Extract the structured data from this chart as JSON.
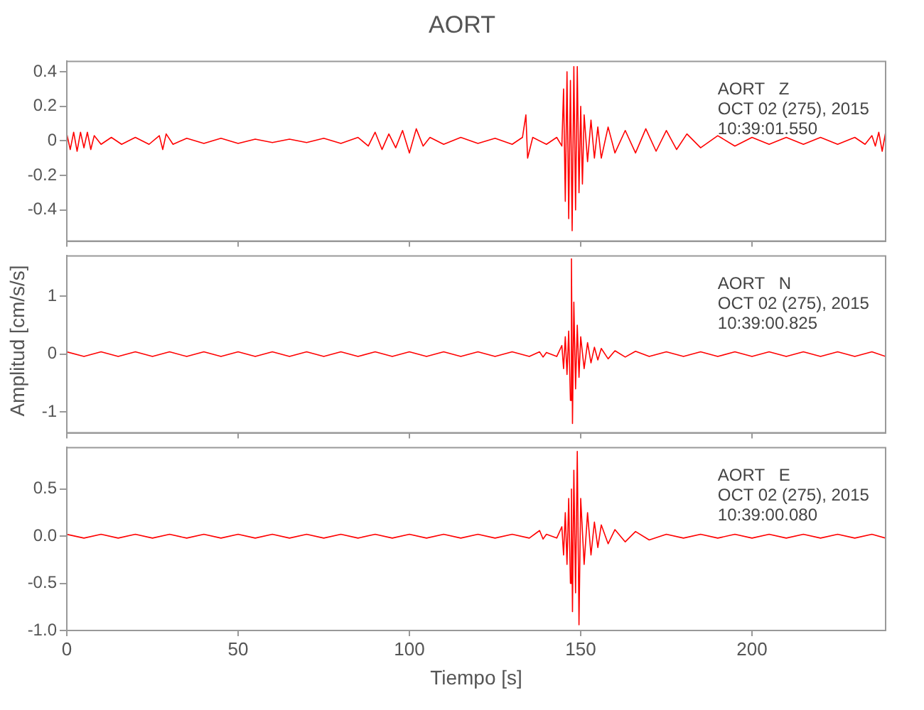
{
  "chart_data": [
    {
      "type": "line",
      "title": "AORT",
      "annotations": [
        "AORT   Z",
        "OCT 02 (275), 2015",
        "10:39:01.550"
      ],
      "tick_labels": "y",
      "grid": false,
      "xlim": [
        0,
        239
      ],
      "xticks": [
        0,
        50,
        100,
        150,
        200
      ],
      "ylim": [
        -0.58,
        0.46
      ],
      "yticks": [
        -0.4,
        -0.2,
        0.0,
        0.2,
        0.4
      ],
      "series": [
        {
          "color": "#ff0000",
          "x": [
            0,
            1,
            2,
            3,
            4,
            5,
            6,
            7,
            8,
            10,
            13,
            16,
            20,
            24,
            27,
            28,
            29,
            31,
            35,
            40,
            45,
            50,
            55,
            60,
            65,
            70,
            75,
            80,
            85,
            88,
            90,
            92,
            94,
            96,
            98,
            100,
            102,
            104,
            106,
            110,
            115,
            120,
            125,
            130,
            133,
            134,
            134.5,
            136,
            140,
            143,
            144.5,
            145,
            145.5,
            146,
            146.5,
            147,
            147.5,
            148,
            148.5,
            149,
            149.5,
            150,
            150.5,
            151,
            152,
            153,
            154,
            155,
            156,
            158,
            160,
            163,
            166,
            169,
            172,
            175,
            178,
            181,
            185,
            190,
            195,
            200,
            205,
            210,
            215,
            220,
            225,
            230,
            233,
            235,
            236,
            237,
            238,
            239
          ],
          "values": [
            0.04,
            -0.05,
            0.05,
            -0.06,
            0.05,
            -0.04,
            0.05,
            -0.05,
            0.03,
            -0.02,
            0.02,
            -0.02,
            0.02,
            -0.02,
            0.03,
            -0.05,
            0.04,
            -0.02,
            0.015,
            -0.015,
            0.015,
            -0.015,
            0.01,
            -0.01,
            0.01,
            -0.01,
            0.015,
            -0.015,
            0.02,
            -0.03,
            0.05,
            -0.05,
            0.04,
            -0.04,
            0.06,
            -0.07,
            0.07,
            -0.03,
            0.02,
            -0.02,
            0.02,
            -0.015,
            0.015,
            -0.02,
            0.02,
            0.15,
            -0.1,
            0.02,
            -0.02,
            0.02,
            -0.03,
            0.3,
            -0.35,
            0.4,
            -0.45,
            0.35,
            -0.52,
            0.43,
            -0.4,
            0.43,
            -0.3,
            0.2,
            -0.25,
            0.15,
            -0.12,
            0.12,
            -0.1,
            0.08,
            -0.1,
            0.08,
            -0.07,
            0.06,
            -0.07,
            0.07,
            -0.06,
            0.06,
            -0.05,
            0.04,
            -0.04,
            0.03,
            -0.03,
            0.02,
            -0.02,
            0.02,
            -0.02,
            0.02,
            -0.02,
            0.02,
            -0.02,
            0.03,
            -0.03,
            0.05,
            -0.06,
            0.05
          ]
        }
      ]
    },
    {
      "type": "line",
      "ylabel": "Amplitud [cm/s/s]",
      "annotations": [
        "AORT   N",
        "OCT 02 (275), 2015",
        "10:39:00.825"
      ],
      "tick_labels": "y",
      "grid": false,
      "xlim": [
        0,
        239
      ],
      "xticks": [
        0,
        50,
        100,
        150,
        200
      ],
      "ylim": [
        -1.36,
        1.7
      ],
      "yticks": [
        -1,
        0,
        1
      ],
      "series": [
        {
          "color": "#ff0000",
          "x": [
            0,
            5,
            10,
            15,
            20,
            25,
            30,
            35,
            40,
            45,
            50,
            55,
            60,
            65,
            70,
            75,
            80,
            85,
            90,
            95,
            100,
            105,
            110,
            115,
            120,
            125,
            130,
            135,
            138,
            139,
            140,
            143,
            144.5,
            145,
            145.5,
            146,
            146.5,
            147,
            147.3,
            147.6,
            148,
            148.5,
            149,
            149.5,
            150,
            151,
            152,
            153,
            154,
            155,
            156,
            158,
            160,
            163,
            166,
            170,
            175,
            180,
            185,
            190,
            195,
            200,
            205,
            210,
            215,
            220,
            225,
            230,
            235,
            239
          ],
          "values": [
            0.04,
            -0.04,
            0.04,
            -0.04,
            0.04,
            -0.04,
            0.04,
            -0.04,
            0.04,
            -0.04,
            0.04,
            -0.04,
            0.04,
            -0.04,
            0.04,
            -0.04,
            0.04,
            -0.04,
            0.04,
            -0.04,
            0.04,
            -0.04,
            0.04,
            -0.04,
            0.04,
            -0.04,
            0.04,
            -0.04,
            0.04,
            -0.05,
            0.03,
            -0.04,
            0.15,
            -0.25,
            0.3,
            -0.35,
            0.4,
            -0.8,
            1.65,
            -1.2,
            0.9,
            -0.6,
            0.5,
            -0.4,
            0.3,
            -0.25,
            0.2,
            -0.15,
            0.12,
            -0.1,
            0.1,
            -0.08,
            0.06,
            -0.05,
            0.05,
            -0.04,
            0.04,
            -0.04,
            0.04,
            -0.04,
            0.04,
            -0.04,
            0.04,
            -0.04,
            0.04,
            -0.04,
            0.04,
            -0.04,
            0.04,
            -0.04
          ]
        }
      ]
    },
    {
      "type": "line",
      "xlabel": "Tiempo [s]",
      "annotations": [
        "AORT   E",
        "OCT 02 (275), 2015",
        "10:39:00.080"
      ],
      "grid": false,
      "xlim": [
        0,
        239
      ],
      "xticks": [
        0,
        50,
        100,
        150,
        200
      ],
      "ylim": [
        -1.0,
        0.94
      ],
      "yticks": [
        {
          "value": -1.0,
          "label": "-1.0"
        },
        -0.5,
        {
          "value": 0.0,
          "label": "0.0"
        },
        0.5
      ],
      "series": [
        {
          "color": "#ff0000",
          "x": [
            0,
            5,
            10,
            15,
            20,
            25,
            30,
            35,
            40,
            45,
            50,
            55,
            60,
            65,
            70,
            75,
            80,
            85,
            90,
            95,
            100,
            105,
            110,
            115,
            120,
            125,
            130,
            135,
            138,
            139,
            140,
            143,
            144.5,
            145,
            145.5,
            146,
            146.5,
            147,
            147.3,
            147.6,
            148,
            148.5,
            149,
            149.5,
            150,
            151,
            152,
            153,
            154,
            155,
            156,
            158,
            160,
            163,
            166,
            170,
            175,
            180,
            185,
            190,
            195,
            200,
            205,
            210,
            215,
            220,
            225,
            230,
            235,
            239
          ],
          "values": [
            0.02,
            -0.02,
            0.02,
            -0.02,
            0.02,
            -0.02,
            0.02,
            -0.02,
            0.02,
            -0.02,
            0.02,
            -0.02,
            0.02,
            -0.02,
            0.02,
            -0.02,
            0.02,
            -0.02,
            0.02,
            -0.02,
            0.02,
            -0.02,
            0.02,
            -0.02,
            0.02,
            -0.02,
            0.02,
            -0.02,
            0.06,
            -0.03,
            0.02,
            -0.02,
            0.1,
            -0.2,
            0.25,
            -0.3,
            0.4,
            -0.5,
            0.5,
            -0.8,
            0.7,
            -0.6,
            0.9,
            -0.94,
            0.4,
            -0.3,
            0.25,
            -0.2,
            0.15,
            -0.12,
            0.12,
            -0.08,
            0.07,
            -0.06,
            0.05,
            -0.04,
            0.02,
            -0.02,
            0.02,
            -0.02,
            0.02,
            -0.02,
            0.02,
            -0.02,
            0.02,
            -0.02,
            0.02,
            -0.02,
            0.02,
            -0.02
          ]
        }
      ]
    }
  ]
}
